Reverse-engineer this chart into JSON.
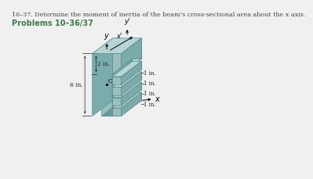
{
  "title_line": "10–37. Determine the moment of inertia of the beam’s cross-sectional area about the x axis.",
  "subtitle": "Problems 10–36/37",
  "subtitle_color": "#3a7d44",
  "bg_color": "#f0f0f0",
  "title_color": "#444444",
  "beam_front": "#9bbfbf",
  "beam_top": "#b8d4d4",
  "beam_right": "#7aaaaa",
  "beam_back": "#6a9999",
  "beam_edge": "#4a8080",
  "dim_color": "#222222",
  "axis_color": "#111111"
}
